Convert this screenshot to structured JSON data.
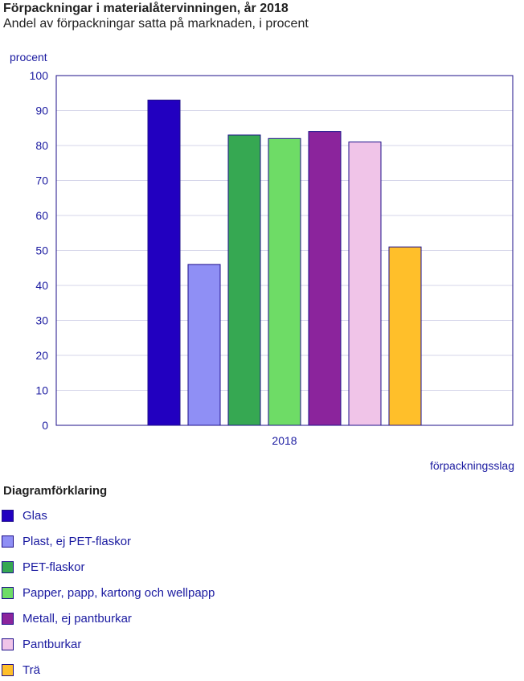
{
  "chart_data": {
    "type": "bar",
    "title": "Förpackningar i materialåtervinningen, år 2018",
    "subtitle": "Andel av förpackningar satta på marknaden, i procent",
    "ylabel": "procent",
    "xlabel": "förpackningsslag",
    "categories": [
      "2018"
    ],
    "ylim": [
      0,
      100
    ],
    "yticks": [
      0,
      10,
      20,
      30,
      40,
      50,
      60,
      70,
      80,
      90,
      100
    ],
    "grid": true,
    "legend_title": "Diagramförklaring",
    "legend_position": "bottom",
    "series": [
      {
        "name": "Glas",
        "values": [
          93
        ],
        "color": "#2200c0"
      },
      {
        "name": "Plast, ej PET-flaskor",
        "values": [
          46
        ],
        "color": "#8f8ff5"
      },
      {
        "name": "PET-flaskor",
        "values": [
          83
        ],
        "color": "#36a852"
      },
      {
        "name": "Papper, papp, kartong och wellpapp",
        "values": [
          82
        ],
        "color": "#6edc66"
      },
      {
        "name": "Metall, ej pantburkar",
        "values": [
          84
        ],
        "color": "#8b249c"
      },
      {
        "name": "Pantburkar",
        "values": [
          81
        ],
        "color": "#f0c4e8"
      },
      {
        "name": "Trä",
        "values": [
          51
        ],
        "color": "#ffbf2a"
      }
    ]
  }
}
